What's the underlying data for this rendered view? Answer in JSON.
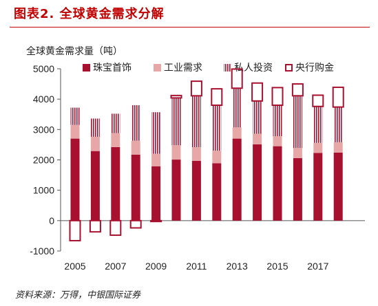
{
  "figure_title": "图表2. 全球黄金需求分解",
  "source_note": "资料来源：万得，中银国际证券",
  "chart_data": {
    "type": "bar",
    "stacked": true,
    "title": "",
    "ylabel": "全球黄金需求量（吨）",
    "xlabel": "",
    "ylim": [
      -1000,
      5000
    ],
    "yticks": [
      -1000,
      0,
      1000,
      2000,
      3000,
      4000,
      5000
    ],
    "x_tick_labels": [
      "2005",
      "2007",
      "2009",
      "2011",
      "2013",
      "2015",
      "2017"
    ],
    "categories": [
      "2005",
      "2006",
      "2007",
      "2008",
      "2009",
      "2010",
      "2011",
      "2012",
      "2013",
      "2014",
      "2015",
      "2016",
      "2017",
      "2018"
    ],
    "legend_position": "top",
    "grid": false,
    "series": [
      {
        "name": "珠宝首饰",
        "color": "#a8102f",
        "pattern": "solid",
        "values": [
          2700,
          2290,
          2420,
          2170,
          1790,
          2010,
          1970,
          1890,
          2700,
          2510,
          2450,
          2060,
          2230,
          2240
        ]
      },
      {
        "name": "工业需求",
        "color": "#e8a7a7",
        "pattern": "solid",
        "values": [
          450,
          470,
          460,
          460,
          410,
          470,
          450,
          410,
          370,
          350,
          330,
          330,
          330,
          340
        ]
      },
      {
        "name": "私人投资",
        "color": "#a8102f",
        "pattern": "stripes",
        "values": [
          570,
          600,
          640,
          1170,
          1370,
          1560,
          1690,
          1500,
          1290,
          1080,
          1020,
          1720,
          1200,
          1160
        ]
      },
      {
        "name": "央行购金",
        "color": "#a8102f",
        "pattern": "outline",
        "values": [
          -660,
          -370,
          -480,
          -240,
          -30,
          80,
          480,
          540,
          630,
          590,
          580,
          390,
          370,
          650
        ]
      }
    ]
  }
}
